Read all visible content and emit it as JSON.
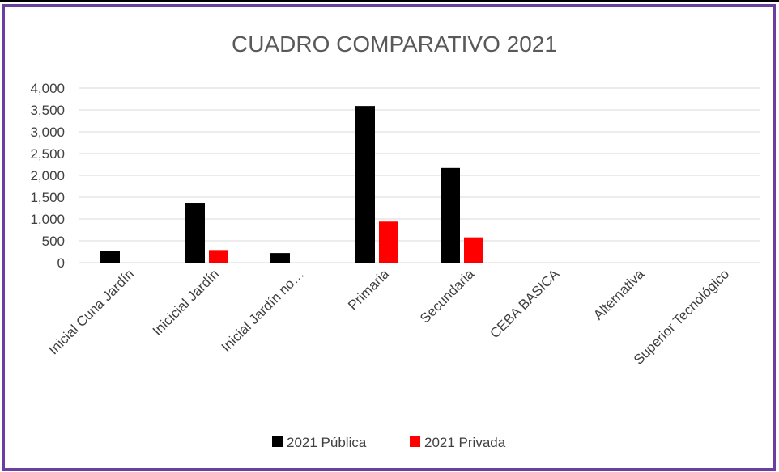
{
  "chart_data": {
    "type": "bar",
    "title": "CUADRO COMPARATIVO 2021",
    "xlabel": "",
    "ylabel": "",
    "ylim": [
      0,
      4000
    ],
    "yticks": [
      "0",
      "500",
      "1,000",
      "1,500",
      "2,000",
      "2,500",
      "3,000",
      "3,500",
      "4,000"
    ],
    "ytick_values": [
      0,
      500,
      1000,
      1500,
      2000,
      2500,
      3000,
      3500,
      4000
    ],
    "categories": [
      "Inicial Cuna Jardín",
      "Inicicial Jardín",
      "Inicial Jardín no…",
      "Primaria",
      "Secundaria",
      "CEBA BASICA",
      "Alternativa",
      "Superior Tecnológico"
    ],
    "series": [
      {
        "name": "2021 Pública",
        "color": "#000000",
        "values": [
          270,
          1370,
          220,
          3590,
          2170,
          0,
          0,
          0
        ]
      },
      {
        "name": "2021 Privada",
        "color": "#ff0000",
        "values": [
          0,
          290,
          0,
          940,
          580,
          0,
          0,
          0
        ]
      }
    ],
    "grid": true,
    "legend_position": "bottom"
  },
  "colors": {
    "frame": "#6b3fa0",
    "grid": "#d9d9d9",
    "text": "#404040"
  }
}
